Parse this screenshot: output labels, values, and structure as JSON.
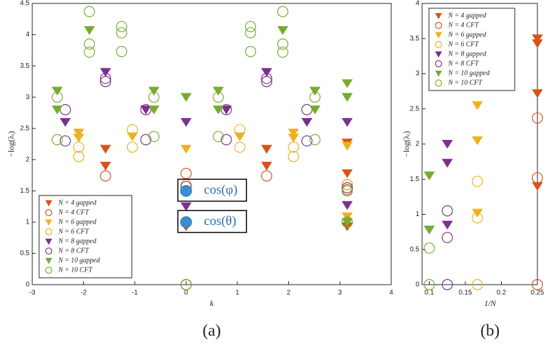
{
  "chart_data": [
    {
      "type": "scatter",
      "panel_label": "(a)",
      "xlabel": "k",
      "ylabel": "−log(λᵢ)",
      "xlim": [
        -3,
        4
      ],
      "ylim": [
        0,
        4.5
      ],
      "xticks": [
        -3,
        -2,
        -1,
        0,
        1,
        2,
        3,
        4
      ],
      "yticks": [
        0,
        0.5,
        1,
        1.5,
        2,
        2.5,
        3,
        3.5,
        4,
        4.5
      ],
      "legend": "lower left",
      "series": [
        {
          "name": "N = 4 gapped",
          "color": "#d95319",
          "marker": "triangle",
          "x": [
            -1.571,
            -1.571,
            0,
            1.571,
            1.571,
            3.142,
            3.142,
            3.142
          ],
          "values": [
            2.17,
            1.9,
            0.93,
            2.17,
            1.9,
            2.27,
            1.78,
            0.93
          ]
        },
        {
          "name": "N = 4 CFT",
          "color": "#d95319",
          "marker": "circle",
          "x": [
            -1.571,
            0,
            0,
            1.571,
            3.142,
            3.142
          ],
          "values": [
            1.74,
            0,
            1.78,
            1.74,
            1.6,
            1.52
          ]
        },
        {
          "name": "N = 6 gapped",
          "color": "#edb120",
          "marker": "triangle",
          "x": [
            -2.094,
            -2.094,
            -1.047,
            0,
            1.047,
            2.094,
            2.094,
            3.142,
            3.142
          ],
          "values": [
            2.43,
            2.35,
            2.37,
            2.17,
            2.37,
            2.43,
            2.35,
            2.22,
            1.09
          ]
        },
        {
          "name": "N = 6 CFT",
          "color": "#edb120",
          "marker": "circle",
          "x": [
            -2.094,
            -2.094,
            -1.047,
            -1.047,
            0,
            0,
            1.047,
            1.047,
            2.094,
            2.094,
            3.142,
            3.142
          ],
          "values": [
            2.2,
            2.05,
            2.48,
            2.2,
            0,
            1.6,
            2.48,
            2.2,
            2.2,
            2.05,
            1.6,
            1.0
          ]
        },
        {
          "name": "N = 8 gapped",
          "color": "#7e2f8e",
          "marker": "triangle",
          "x": [
            -2.356,
            -1.571,
            -0.785,
            0,
            0,
            0.785,
            1.571,
            2.356,
            3.142,
            3.142
          ],
          "values": [
            2.6,
            3.4,
            2.8,
            2.6,
            1.25,
            2.8,
            3.4,
            2.6,
            2.6,
            1.27
          ]
        },
        {
          "name": "N = 8 CFT",
          "color": "#7e2f8e",
          "marker": "circle",
          "x": [
            -2.356,
            -2.356,
            -1.571,
            -1.571,
            -0.785,
            -0.785,
            0,
            0,
            0.785,
            0.785,
            1.571,
            1.571,
            2.356,
            2.356,
            3.142,
            3.142
          ],
          "values": [
            2.8,
            2.3,
            3.3,
            3.25,
            2.8,
            2.32,
            0,
            1.57,
            2.8,
            2.32,
            3.3,
            3.25,
            2.8,
            2.3,
            1.55,
            1.0
          ]
        },
        {
          "name": "N = 10 gapped",
          "color": "#77ac30",
          "marker": "triangle",
          "x": [
            -2.513,
            -2.513,
            -1.885,
            -0.628,
            -0.628,
            0,
            0,
            0.628,
            0.628,
            1.885,
            2.513,
            2.513,
            3.142,
            3.142,
            3.142
          ],
          "values": [
            3.1,
            2.8,
            4.07,
            3.1,
            2.8,
            3.0,
            1.5,
            3.1,
            2.8,
            4.07,
            3.1,
            2.8,
            3.22,
            3.0,
            1.0
          ]
        },
        {
          "name": "N = 10 CFT",
          "color": "#77ac30",
          "marker": "circle",
          "x": [
            -2.513,
            -2.513,
            -1.885,
            -1.885,
            -1.885,
            -1.257,
            -1.257,
            -1.257,
            -0.628,
            -0.628,
            0,
            0,
            0.628,
            0.628,
            1.257,
            1.257,
            1.257,
            1.885,
            1.885,
            1.885,
            2.513,
            2.513,
            3.142,
            3.142
          ],
          "values": [
            3.0,
            2.32,
            4.37,
            3.85,
            3.72,
            4.13,
            4.03,
            3.73,
            3.0,
            2.37,
            0,
            1.5,
            3.0,
            2.37,
            4.13,
            4.03,
            3.73,
            4.37,
            3.85,
            3.72,
            3.0,
            2.32,
            1.5,
            1.0
          ]
        }
      ],
      "annotations": [
        {
          "text": "cos(φ)",
          "x": 0,
          "y": 1.5
        },
        {
          "text": "cos(θ)",
          "x": 0,
          "y": 1.0
        }
      ]
    },
    {
      "type": "scatter",
      "panel_label": "(b)",
      "xlabel": "1/N",
      "ylabel": "−log(λᵢ)",
      "xlim": [
        0.09,
        0.25
      ],
      "ylim": [
        0,
        4
      ],
      "xticks": [
        0.1,
        0.15,
        0.2,
        0.25
      ],
      "yticks": [
        0,
        0.5,
        1,
        1.5,
        2,
        2.5,
        3,
        3.5,
        4
      ],
      "legend": "upper left",
      "series": [
        {
          "name": "N = 4 gapped",
          "color": "#d95319",
          "marker": "triangle",
          "x": [
            0.25,
            0.25,
            0.25,
            0.25
          ],
          "values": [
            3.5,
            3.43,
            2.72,
            1.4
          ]
        },
        {
          "name": "N = 4 CFT",
          "color": "#d95319",
          "marker": "circle",
          "x": [
            0.25,
            0.25,
            0.25
          ],
          "values": [
            0,
            1.52,
            2.37
          ]
        },
        {
          "name": "N = 6 gapped",
          "color": "#edb120",
          "marker": "triangle",
          "x": [
            0.1667,
            0.1667,
            0.1667
          ],
          "values": [
            2.55,
            2.05,
            1.02
          ]
        },
        {
          "name": "N = 6 CFT",
          "color": "#edb120",
          "marker": "circle",
          "x": [
            0.1667,
            0.1667,
            0.1667
          ],
          "values": [
            0,
            0.95,
            1.47
          ]
        },
        {
          "name": "N = 8 gapped",
          "color": "#7e2f8e",
          "marker": "triangle",
          "x": [
            0.125,
            0.125,
            0.125
          ],
          "values": [
            2.0,
            1.73,
            0.85
          ]
        },
        {
          "name": "N = 8 CFT",
          "color": "#7e2f8e",
          "marker": "circle",
          "x": [
            0.125,
            0.125,
            0.125
          ],
          "values": [
            0,
            0.67,
            1.05
          ]
        },
        {
          "name": "N = 10 gapped",
          "color": "#77ac30",
          "marker": "triangle",
          "x": [
            0.1,
            0.1
          ],
          "values": [
            1.55,
            0.78
          ]
        },
        {
          "name": "N = 10 CFT",
          "color": "#77ac30",
          "marker": "circle",
          "x": [
            0.1,
            0.1
          ],
          "values": [
            0,
            0.52
          ]
        }
      ]
    }
  ]
}
